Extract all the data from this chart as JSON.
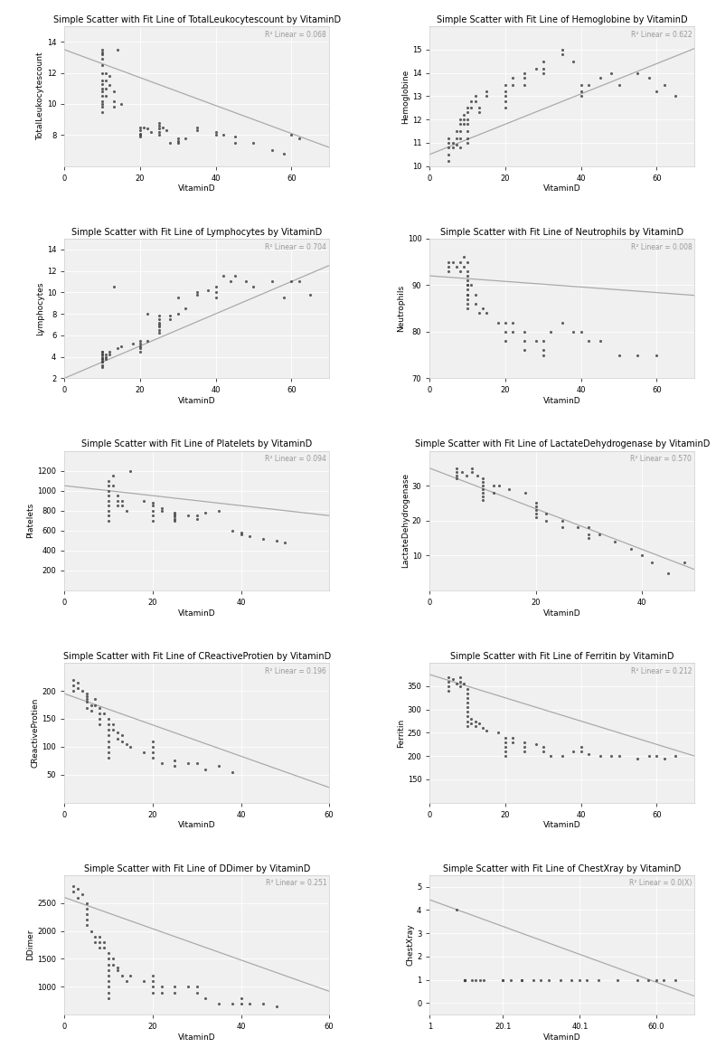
{
  "plots": [
    {
      "title": "Simple Scatter with Fit Line of TotalLeukocytescount by VitaminD",
      "xlabel": "VitaminD",
      "ylabel": "TotalLeukocytescount",
      "r_label": "R² Linear = 0.068",
      "xlim": [
        0,
        70
      ],
      "ylim": [
        6.0,
        15.0
      ],
      "xticks": [
        0,
        20.0,
        40.0,
        60.0
      ],
      "yticks": [
        8.0,
        10.0,
        12.0,
        14.0
      ],
      "slope": -0.09,
      "intercept": 13.5,
      "x_data": [
        10,
        10,
        10,
        10,
        10,
        10,
        10,
        10,
        10,
        10,
        10,
        10,
        10,
        10,
        10,
        11,
        11,
        11,
        11,
        12,
        12,
        13,
        13,
        13,
        14,
        15,
        20,
        20,
        20,
        20,
        20,
        21,
        22,
        23,
        25,
        25,
        25,
        25,
        25,
        26,
        27,
        28,
        30,
        30,
        30,
        32,
        35,
        35,
        40,
        40,
        42,
        45,
        45,
        50,
        55,
        58,
        60,
        62
      ],
      "y_data": [
        13.3,
        13.5,
        13.2,
        12.9,
        12.5,
        12.0,
        11.5,
        11.3,
        11.0,
        10.8,
        10.5,
        10.2,
        10.0,
        9.8,
        9.5,
        12.0,
        11.5,
        11.0,
        10.5,
        11.8,
        11.2,
        10.8,
        10.2,
        9.8,
        13.5,
        10.0,
        8.5,
        8.3,
        8.1,
        8.0,
        7.9,
        8.5,
        8.4,
        8.2,
        8.8,
        8.6,
        8.4,
        8.2,
        8.0,
        8.5,
        8.3,
        7.5,
        7.8,
        7.6,
        7.5,
        7.8,
        8.5,
        8.3,
        8.2,
        8.0,
        8.0,
        7.9,
        7.5,
        7.5,
        7.0,
        6.8,
        8.0,
        7.8
      ]
    },
    {
      "title": "Simple Scatter with Fit Line of Hemoglobine by VitaminD",
      "xlabel": "VitaminD",
      "ylabel": "Hemoglobine",
      "r_label": "R² Linear = 0.622",
      "xlim": [
        0,
        70
      ],
      "ylim": [
        10.0,
        16.0
      ],
      "xticks": [
        0,
        20.0,
        40.0,
        60.0
      ],
      "yticks": [
        10.0,
        11.0,
        12.0,
        13.0,
        14.0,
        15.0
      ],
      "slope": 0.065,
      "intercept": 10.5,
      "x_data": [
        5,
        5,
        5,
        5,
        5,
        6,
        6,
        7,
        7,
        7,
        8,
        8,
        8,
        8,
        8,
        9,
        9,
        9,
        10,
        10,
        10,
        10,
        10,
        10,
        10,
        11,
        11,
        12,
        12,
        13,
        13,
        15,
        15,
        20,
        20,
        20,
        20,
        20,
        22,
        22,
        25,
        25,
        25,
        28,
        30,
        30,
        30,
        35,
        35,
        38,
        40,
        40,
        40,
        42,
        45,
        48,
        50,
        55,
        58,
        60,
        62,
        65
      ],
      "y_data": [
        10.2,
        10.5,
        10.8,
        11.0,
        11.2,
        10.8,
        11.0,
        11.5,
        11.2,
        10.9,
        11.8,
        11.5,
        12.0,
        11.2,
        10.8,
        12.2,
        12.0,
        11.8,
        12.5,
        12.3,
        12.0,
        11.8,
        11.5,
        11.2,
        11.0,
        12.8,
        12.5,
        13.0,
        12.8,
        12.5,
        12.3,
        13.2,
        13.0,
        13.5,
        13.2,
        13.0,
        12.8,
        12.5,
        13.8,
        13.5,
        14.0,
        13.8,
        13.5,
        14.2,
        14.5,
        14.2,
        14.0,
        15.0,
        14.8,
        14.5,
        13.5,
        13.2,
        13.0,
        13.5,
        13.8,
        14.0,
        13.5,
        14.0,
        13.8,
        13.2,
        13.5,
        13.0
      ]
    },
    {
      "title": "Simple Scatter with Fit Line of Lymphocytes by VitaminD",
      "xlabel": "VitaminD",
      "ylabel": "Lymphocytes",
      "r_label": "R² Linear = 0.704",
      "xlim": [
        0,
        70
      ],
      "ylim": [
        2.0,
        15.0
      ],
      "xticks": [
        0,
        20.0,
        40.0,
        60.0
      ],
      "yticks": [
        2.0,
        4.0,
        6.0,
        8.0,
        10.0,
        12.0,
        14.0
      ],
      "slope": 0.15,
      "intercept": 2.0,
      "x_data": [
        10,
        10,
        10,
        10,
        10,
        10,
        10,
        10,
        10,
        10,
        10,
        11,
        11,
        11,
        12,
        12,
        13,
        14,
        15,
        18,
        20,
        20,
        20,
        20,
        20,
        22,
        22,
        25,
        25,
        25,
        25,
        25,
        25,
        25,
        28,
        28,
        30,
        30,
        32,
        35,
        35,
        38,
        40,
        40,
        40,
        42,
        44,
        45,
        48,
        50,
        55,
        58,
        60,
        62,
        65
      ],
      "y_data": [
        3.2,
        3.5,
        3.8,
        4.0,
        4.2,
        4.5,
        3.8,
        4.2,
        3.5,
        3.0,
        4.5,
        4.2,
        4.0,
        3.8,
        4.5,
        4.2,
        10.5,
        4.8,
        5.0,
        5.2,
        5.5,
        5.2,
        5.0,
        4.8,
        4.5,
        8.0,
        5.5,
        7.8,
        7.5,
        7.2,
        7.0,
        6.8,
        6.5,
        6.2,
        7.8,
        7.5,
        8.0,
        9.5,
        8.5,
        9.8,
        10.0,
        10.2,
        10.5,
        10.0,
        9.5,
        11.5,
        11.0,
        11.5,
        11.0,
        10.5,
        11.0,
        9.5,
        11.0,
        11.0,
        9.8
      ]
    },
    {
      "title": "Simple Scatter with Fit Line of Neutrophils by VitaminD",
      "xlabel": "VitaminD",
      "ylabel": "Neutrophils",
      "r_label": "R² Linear = 0.008",
      "xlim": [
        0,
        70
      ],
      "ylim": [
        70.0,
        100.0
      ],
      "xticks": [
        0,
        20.0,
        40.0,
        60.0
      ],
      "yticks": [
        70.0,
        80.0,
        90.0,
        100.0
      ],
      "slope": -0.06,
      "intercept": 92.0,
      "x_data": [
        5,
        5,
        5,
        6,
        7,
        8,
        8,
        9,
        9,
        10,
        10,
        10,
        10,
        10,
        10,
        10,
        10,
        10,
        10,
        10,
        10,
        11,
        12,
        12,
        13,
        14,
        15,
        18,
        20,
        20,
        20,
        22,
        22,
        25,
        25,
        25,
        28,
        30,
        30,
        30,
        32,
        35,
        38,
        40,
        42,
        45,
        50,
        55,
        60
      ],
      "y_data": [
        95,
        94,
        93,
        95,
        94,
        95,
        93,
        96,
        94,
        95,
        93,
        91,
        90,
        89,
        88,
        87,
        92,
        90,
        88,
        86,
        85,
        90,
        88,
        86,
        84,
        85,
        84,
        82,
        82,
        80,
        78,
        82,
        80,
        80,
        78,
        76,
        78,
        78,
        76,
        75,
        80,
        82,
        80,
        80,
        78,
        78,
        75,
        75,
        75
      ]
    },
    {
      "title": "Simple Scatter with Fit Line of Platelets by VitaminD",
      "xlabel": "VitaminD",
      "ylabel": "Platelets",
      "r_label": "R² Linear = 0.094",
      "xlim": [
        0,
        60
      ],
      "ylim": [
        0,
        1400
      ],
      "xticks": [
        0,
        20.0,
        40.0
      ],
      "yticks": [
        200,
        400,
        600,
        800,
        1000,
        1200
      ],
      "slope": -5.0,
      "intercept": 1050,
      "x_data": [
        10,
        10,
        10,
        10,
        10,
        10,
        10,
        10,
        10,
        11,
        11,
        12,
        12,
        12,
        13,
        13,
        14,
        15,
        18,
        20,
        20,
        20,
        20,
        20,
        22,
        22,
        25,
        25,
        25,
        25,
        25,
        28,
        30,
        30,
        32,
        35,
        38,
        40,
        40,
        42,
        45,
        48,
        50
      ],
      "y_data": [
        1100,
        1050,
        1000,
        950,
        900,
        850,
        800,
        750,
        700,
        1150,
        1050,
        950,
        900,
        850,
        900,
        850,
        800,
        1200,
        900,
        850,
        800,
        750,
        700,
        880,
        820,
        800,
        780,
        760,
        740,
        720,
        700,
        750,
        750,
        720,
        780,
        800,
        600,
        580,
        560,
        540,
        520,
        500,
        480
      ]
    },
    {
      "title": "Simple Scatter with Fit Line of LactateDehydrogenase by VitaminD",
      "xlabel": "VitaminD",
      "ylabel": "LactateDehydrogenase",
      "r_label": "R² Linear = 0.570",
      "xlim": [
        0,
        50
      ],
      "ylim": [
        0,
        40.0
      ],
      "xticks": [
        0,
        20.0,
        40.0
      ],
      "yticks": [
        10.0,
        20.0,
        30.0
      ],
      "slope": -0.58,
      "intercept": 35.0,
      "x_data": [
        5,
        5,
        5,
        5,
        6,
        7,
        8,
        8,
        9,
        10,
        10,
        10,
        10,
        10,
        10,
        10,
        12,
        12,
        13,
        15,
        18,
        20,
        20,
        20,
        20,
        20,
        22,
        22,
        25,
        25,
        28,
        30,
        30,
        30,
        32,
        35,
        38,
        40,
        42,
        45,
        48
      ],
      "y_data": [
        35,
        34,
        33,
        32,
        34,
        33,
        35,
        34,
        33,
        32,
        31,
        30,
        29,
        28,
        27,
        26,
        30,
        28,
        30,
        29,
        28,
        25,
        24,
        23,
        22,
        21,
        22,
        20,
        20,
        18,
        18,
        18,
        16,
        15,
        16,
        14,
        12,
        10,
        8,
        5,
        8
      ]
    },
    {
      "title": "Simple Scatter with Fit Line of CReactiveProtien by VitaminD",
      "xlabel": "VitaminD",
      "ylabel": "CReactiveProtien",
      "r_label": "R² Linear = 0.196",
      "xlim": [
        0,
        60
      ],
      "ylim": [
        0,
        250
      ],
      "xticks": [
        0,
        20.0,
        40.0,
        60.0
      ],
      "yticks": [
        50,
        100,
        150,
        200
      ],
      "slope": -2.8,
      "intercept": 195,
      "x_data": [
        2,
        2,
        2,
        3,
        3,
        4,
        5,
        5,
        5,
        5,
        5,
        6,
        6,
        7,
        7,
        8,
        8,
        8,
        8,
        9,
        10,
        10,
        10,
        10,
        10,
        10,
        10,
        10,
        11,
        11,
        12,
        12,
        13,
        13,
        14,
        15,
        18,
        20,
        20,
        20,
        20,
        22,
        25,
        25,
        28,
        30,
        32,
        35,
        38
      ],
      "y_data": [
        220,
        210,
        200,
        215,
        205,
        200,
        180,
        190,
        170,
        195,
        185,
        175,
        165,
        185,
        175,
        170,
        160,
        150,
        140,
        160,
        150,
        140,
        130,
        120,
        110,
        100,
        90,
        80,
        140,
        130,
        125,
        115,
        120,
        110,
        105,
        100,
        90,
        110,
        100,
        90,
        80,
        70,
        75,
        65,
        70,
        70,
        60,
        65,
        55
      ]
    },
    {
      "title": "Simple Scatter with Fit Line of Ferritin by VitaminD",
      "xlabel": "VitaminD",
      "ylabel": "Ferritin",
      "r_label": "R² Linear = 0.212",
      "xlim": [
        0,
        70
      ],
      "ylim": [
        100,
        400
      ],
      "xticks": [
        0,
        20.0,
        40.0,
        60.0
      ],
      "yticks": [
        150,
        200,
        250,
        300,
        350
      ],
      "slope": -2.5,
      "intercept": 375,
      "x_data": [
        5,
        5,
        5,
        5,
        6,
        7,
        8,
        8,
        8,
        9,
        10,
        10,
        10,
        10,
        10,
        10,
        10,
        10,
        10,
        11,
        11,
        12,
        12,
        13,
        14,
        15,
        18,
        20,
        20,
        20,
        20,
        20,
        22,
        22,
        25,
        25,
        25,
        28,
        30,
        30,
        32,
        35,
        38,
        40,
        40,
        42,
        45,
        48,
        50,
        55,
        58,
        60,
        62,
        65
      ],
      "y_data": [
        370,
        360,
        350,
        340,
        365,
        355,
        370,
        360,
        350,
        355,
        345,
        335,
        325,
        315,
        305,
        295,
        285,
        275,
        265,
        280,
        270,
        275,
        265,
        270,
        260,
        255,
        250,
        240,
        230,
        220,
        210,
        200,
        240,
        230,
        230,
        220,
        210,
        225,
        220,
        210,
        200,
        200,
        210,
        220,
        210,
        205,
        200,
        200,
        200,
        195,
        200,
        200,
        195,
        200
      ]
    },
    {
      "title": "Simple Scatter with Fit Line of DDimer by VitaminD",
      "xlabel": "VitaminD",
      "ylabel": "DDimer",
      "r_label": "R² Linear = 0.251",
      "xlim": [
        0,
        60
      ],
      "ylim": [
        500,
        3000
      ],
      "xticks": [
        0,
        20.0,
        40.0,
        60.0
      ],
      "yticks": [
        1000,
        1500,
        2000,
        2500
      ],
      "slope": -28.0,
      "intercept": 2600,
      "x_data": [
        2,
        2,
        3,
        3,
        4,
        5,
        5,
        5,
        5,
        5,
        6,
        7,
        7,
        8,
        8,
        8,
        9,
        9,
        10,
        10,
        10,
        10,
        10,
        10,
        10,
        10,
        10,
        11,
        11,
        12,
        12,
        13,
        14,
        15,
        18,
        20,
        20,
        20,
        20,
        22,
        22,
        25,
        25,
        28,
        30,
        30,
        32,
        35,
        38,
        40,
        40,
        42,
        45,
        48
      ],
      "y_data": [
        2800,
        2700,
        2750,
        2600,
        2650,
        2500,
        2400,
        2300,
        2200,
        2100,
        2000,
        1900,
        1800,
        1900,
        1800,
        1700,
        1800,
        1700,
        1600,
        1500,
        1400,
        1300,
        1200,
        1100,
        1000,
        900,
        800,
        1500,
        1400,
        1350,
        1300,
        1200,
        1100,
        1200,
        1100,
        1200,
        1100,
        1000,
        900,
        1000,
        900,
        1000,
        900,
        1000,
        1000,
        900,
        800,
        700,
        700,
        800,
        700,
        700,
        700,
        650
      ]
    },
    {
      "title": "Simple Scatter with Fit Line of ChestXray by VitaminD",
      "xlabel": "VitaminD",
      "ylabel": "ChestXray",
      "r_label": "R² Linear = 0.0(X)",
      "xlim": [
        1,
        70
      ],
      "ylim": [
        -0.5,
        5.5
      ],
      "xticks": [
        1,
        20.1,
        40.1,
        60.0
      ],
      "xtick_labels": [
        "1",
        "20.1",
        "40.1",
        "60.0"
      ],
      "yticks": [
        0,
        1,
        2,
        3,
        4,
        5
      ],
      "slope": -0.06,
      "intercept": 4.5,
      "x_data": [
        8,
        10,
        10,
        10,
        10,
        10,
        10,
        10,
        10,
        10,
        10,
        10,
        12,
        13,
        14,
        15,
        20,
        20,
        22,
        25,
        25,
        28,
        30,
        32,
        35,
        38,
        40,
        42,
        45,
        50,
        55,
        58,
        60,
        62,
        65
      ],
      "y_data": [
        4,
        1,
        1,
        1,
        1,
        1,
        1,
        1,
        1,
        1,
        1,
        1,
        1,
        1,
        1,
        1,
        1,
        1,
        1,
        1,
        1,
        1,
        1,
        1,
        1,
        1,
        1,
        1,
        1,
        1,
        1,
        1,
        1,
        1,
        1
      ]
    }
  ],
  "fig_background": "#ffffff",
  "plot_background": "#f0f0f0",
  "scatter_color": "#444444",
  "line_color": "#aaaaaa",
  "grid_color": "#ffffff",
  "title_fontsize": 7.0,
  "label_fontsize": 6.5,
  "tick_fontsize": 6.0,
  "annotation_fontsize": 5.5,
  "annotation_color": "#999999"
}
